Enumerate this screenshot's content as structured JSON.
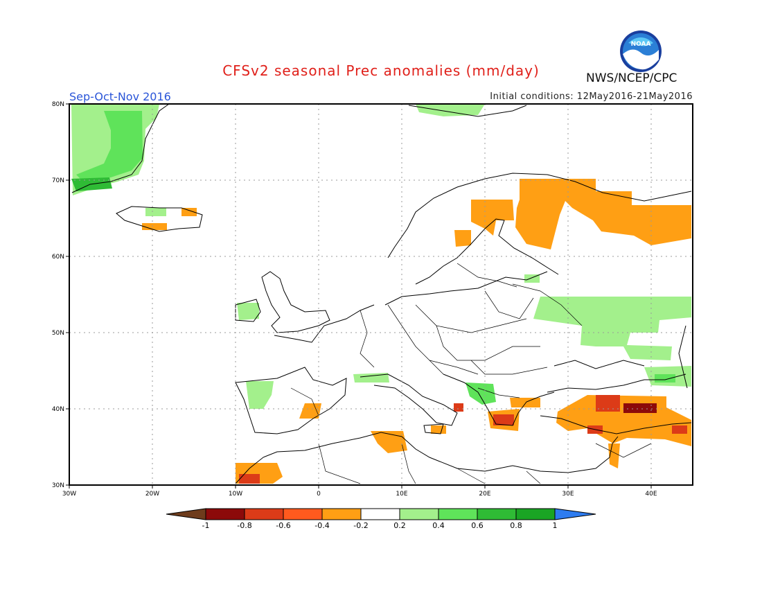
{
  "header": {
    "title": "CFSv2 seasonal Prec anomalies (mm/day)",
    "season": "Sep-Oct-Nov 2016",
    "initial_conditions": "Initial conditions: 12May2016-21May2016",
    "agency": "NWS/NCEP/CPC",
    "logo_text": "NOAA"
  },
  "map": {
    "lat_labels": [
      "80N",
      "70N",
      "60N",
      "50N",
      "40N",
      "30N"
    ],
    "lon_labels": [
      "30W",
      "20W",
      "10W",
      "0",
      "10E",
      "20E",
      "30E",
      "40E"
    ],
    "grid": true
  },
  "colorbar": {
    "tick_labels": [
      "-1",
      "-0.8",
      "-0.6",
      "-0.4",
      "-0.2",
      "0.2",
      "0.4",
      "0.6",
      "0.8",
      "1"
    ],
    "colors": [
      "#8c0a0a",
      "#dc3b18",
      "#ff5a1e",
      "#ff9f14",
      "#ffffff",
      "#a3f08c",
      "#5fe35a",
      "#2fbb35",
      "#1aa524"
    ],
    "low_arrow_color": "#6e3c1c",
    "high_arrow_color": "#2e7cf0"
  }
}
